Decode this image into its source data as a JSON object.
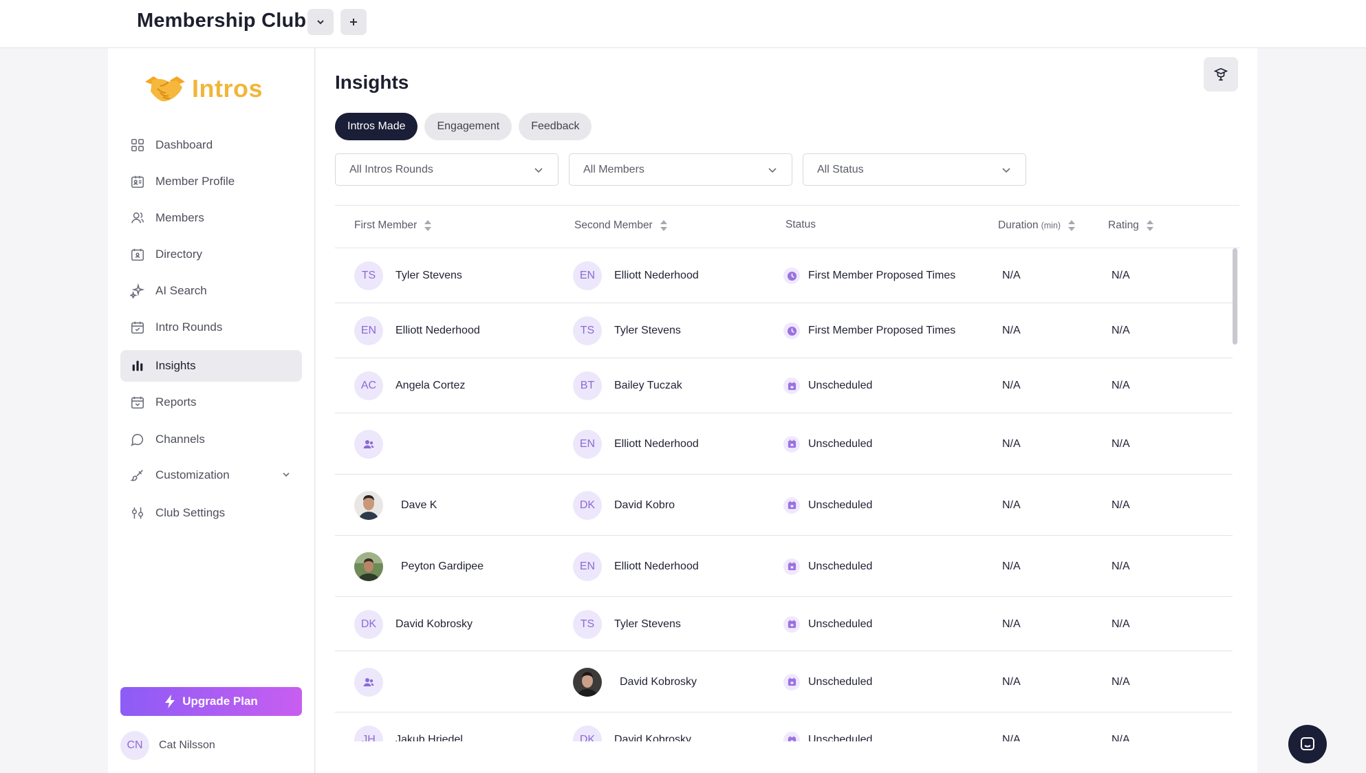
{
  "header": {
    "club_title": "Membership Club"
  },
  "brand": {
    "name": "Intros",
    "color": "#f2b53a",
    "icon": "handshake-icon"
  },
  "sidebar": {
    "items": [
      {
        "label": "Dashboard",
        "icon": "grid-icon"
      },
      {
        "label": "Member Profile",
        "icon": "id-card-icon"
      },
      {
        "label": "Members",
        "icon": "users-icon"
      },
      {
        "label": "Directory",
        "icon": "directory-icon"
      },
      {
        "label": "AI Search",
        "icon": "sparkle-icon"
      },
      {
        "label": "Intro Rounds",
        "icon": "calendar-icon"
      },
      {
        "label": "Insights",
        "icon": "bar-chart-icon",
        "active": true
      },
      {
        "label": "Reports",
        "icon": "inbox-icon"
      },
      {
        "label": "Channels",
        "icon": "chat-icon"
      },
      {
        "label": "Customization",
        "icon": "brush-icon"
      },
      {
        "label": "Club Settings",
        "icon": "sliders-icon"
      }
    ],
    "upgrade_label": "Upgrade Plan",
    "user": {
      "initials": "CN",
      "name": "Cat Nilsson"
    }
  },
  "main": {
    "title": "Insights",
    "tabs": [
      {
        "label": "Intros Made",
        "active": true
      },
      {
        "label": "Engagement"
      },
      {
        "label": "Feedback"
      }
    ],
    "filters": [
      {
        "value": "All Intros Rounds"
      },
      {
        "value": "All Members"
      },
      {
        "value": "All Status"
      }
    ],
    "table": {
      "columns": {
        "first_member": "First Member",
        "second_member": "Second Member",
        "status": "Status",
        "duration": "Duration",
        "duration_unit": "(min)",
        "rating": "Rating"
      },
      "rows": [
        {
          "first": {
            "initials": "TS",
            "name": "Tyler Stevens"
          },
          "second": {
            "initials": "EN",
            "name": "Elliott Nederhood"
          },
          "status": "First Member Proposed Times",
          "status_icon": "clock-icon",
          "duration": "N/A",
          "rating": "N/A"
        },
        {
          "first": {
            "initials": "EN",
            "name": "Elliott Nederhood"
          },
          "second": {
            "initials": "TS",
            "name": "Tyler Stevens"
          },
          "status": "First Member Proposed Times",
          "status_icon": "clock-icon",
          "duration": "N/A",
          "rating": "N/A"
        },
        {
          "first": {
            "initials": "AC",
            "name": "Angela Cortez"
          },
          "second": {
            "initials": "BT",
            "name": "Bailey Tuczak"
          },
          "status": "Unscheduled",
          "status_icon": "calendar-x-icon",
          "duration": "N/A",
          "rating": "N/A"
        },
        {
          "first": {
            "initials": "",
            "name": ""
          },
          "second": {
            "initials": "EN",
            "name": "Elliott Nederhood"
          },
          "status": "Unscheduled",
          "status_icon": "calendar-x-icon",
          "duration": "N/A",
          "rating": "N/A"
        },
        {
          "first": {
            "initials": "",
            "name": "Dave K"
          },
          "second": {
            "initials": "DK",
            "name": "David Kobro"
          },
          "status": "Unscheduled",
          "status_icon": "calendar-x-icon",
          "duration": "N/A",
          "rating": "N/A"
        },
        {
          "first": {
            "initials": "",
            "name": "Peyton Gardipee"
          },
          "second": {
            "initials": "EN",
            "name": "Elliott Nederhood"
          },
          "status": "Unscheduled",
          "status_icon": "calendar-x-icon",
          "duration": "N/A",
          "rating": "N/A"
        },
        {
          "first": {
            "initials": "DK",
            "name": "David Kobrosky"
          },
          "second": {
            "initials": "TS",
            "name": "Tyler Stevens"
          },
          "status": "Unscheduled",
          "status_icon": "calendar-x-icon",
          "duration": "N/A",
          "rating": "N/A"
        },
        {
          "first": {
            "initials": "",
            "name": ""
          },
          "second": {
            "initials": "",
            "name": "David Kobrosky"
          },
          "status": "Unscheduled",
          "status_icon": "calendar-x-icon",
          "duration": "N/A",
          "rating": "N/A"
        },
        {
          "first": {
            "initials": "JH",
            "name": "Jakub Hriedel"
          },
          "second": {
            "initials": "DK",
            "name": "David Kobrosky"
          },
          "status": "Unscheduled",
          "status_icon": "calendar-x-icon",
          "duration": "N/A",
          "rating": "N/A"
        }
      ]
    }
  },
  "colors": {
    "accent": "#8b6ad6",
    "tab_active": "#1a1e36",
    "upgrade_from": "#8d5cf6",
    "upgrade_to": "#c85ef0"
  }
}
